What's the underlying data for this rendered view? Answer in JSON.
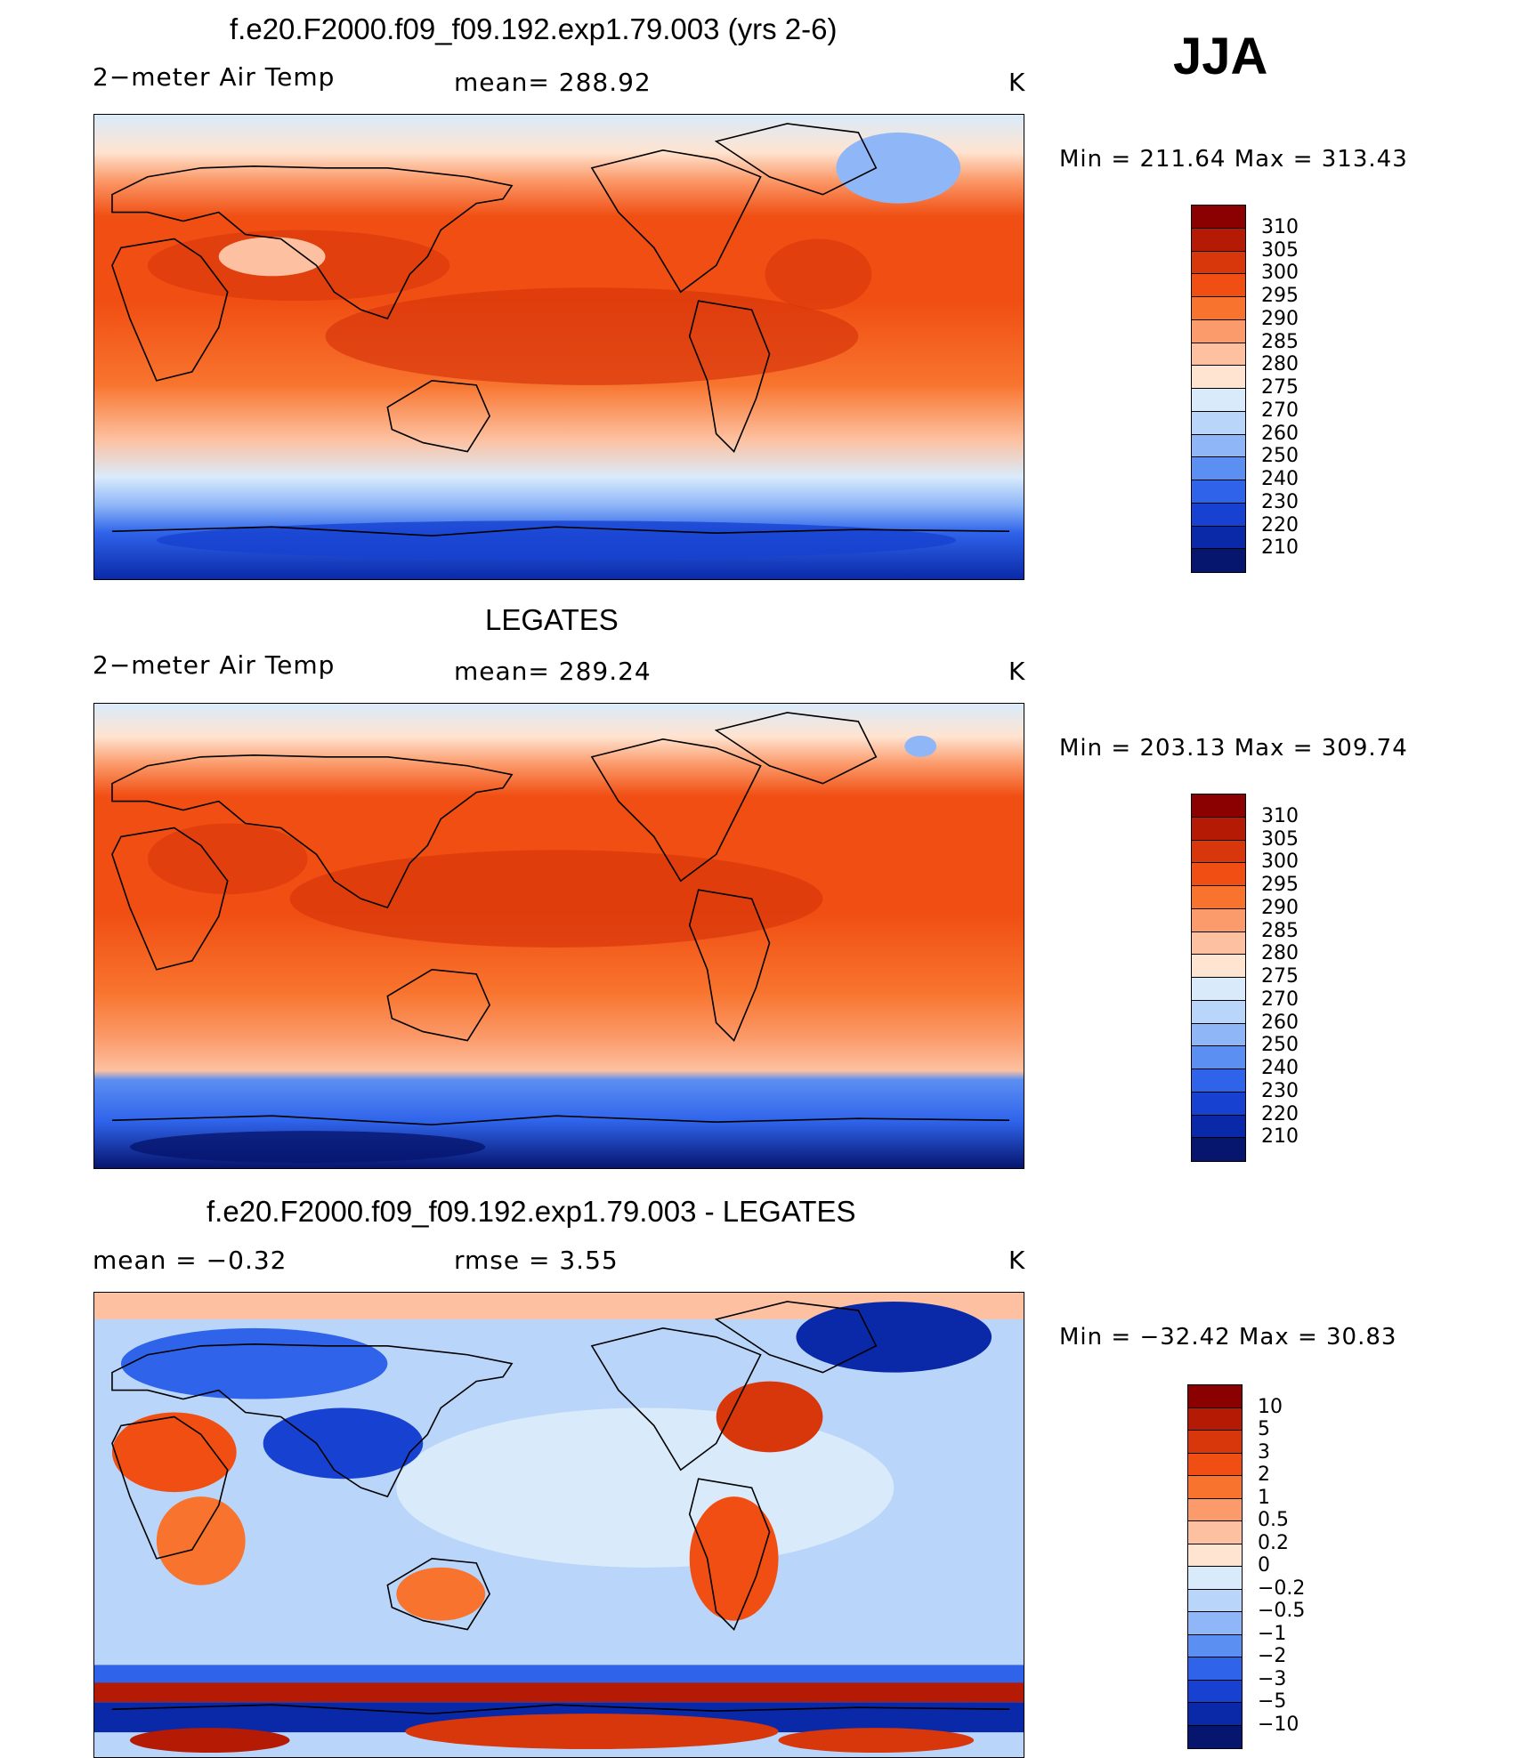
{
  "season": "JJA",
  "units": "K",
  "panels": [
    {
      "id": "model",
      "title": "f.e20.F2000.f09_f09.192.exp1.79.003 (yrs 2-6)",
      "variable": "2−meter Air Temp",
      "mean_text": "mean= 288.92",
      "minmax_text": "Min = 211.64 Max = 313.43",
      "colorbar": {
        "labels": [
          "310",
          "305",
          "300",
          "295",
          "290",
          "285",
          "280",
          "275",
          "270",
          "260",
          "250",
          "240",
          "230",
          "220",
          "210"
        ],
        "colors": [
          "#8b0000",
          "#b51a05",
          "#d8360b",
          "#f04e12",
          "#f8742e",
          "#fb9a6a",
          "#fdc1a1",
          "#fee4d1",
          "#d9ebfb",
          "#b9d6fa",
          "#8fb7f7",
          "#5b8ff2",
          "#2f63ea",
          "#1741d0",
          "#0a29a8",
          "#06156e"
        ]
      },
      "map_palette": "temp"
    },
    {
      "id": "obs",
      "title": "LEGATES",
      "variable": "2−meter Air Temp",
      "mean_text": "mean= 289.24",
      "minmax_text": "Min = 203.13 Max = 309.74",
      "colorbar": {
        "labels": [
          "310",
          "305",
          "300",
          "295",
          "290",
          "285",
          "280",
          "275",
          "270",
          "260",
          "250",
          "240",
          "230",
          "220",
          "210"
        ],
        "colors": [
          "#8b0000",
          "#b51a05",
          "#d8360b",
          "#f04e12",
          "#f8742e",
          "#fb9a6a",
          "#fdc1a1",
          "#fee4d1",
          "#d9ebfb",
          "#b9d6fa",
          "#8fb7f7",
          "#5b8ff2",
          "#2f63ea",
          "#1741d0",
          "#0a29a8",
          "#06156e"
        ]
      },
      "map_palette": "temp"
    },
    {
      "id": "diff",
      "title": "f.e20.F2000.f09_f09.192.exp1.79.003 - LEGATES",
      "mean_text": "mean =   −0.32",
      "rmse_text": "rmse =    3.55",
      "minmax_text": "Min = −32.42 Max =  30.83",
      "colorbar": {
        "labels": [
          "10",
          "5",
          "3",
          "2",
          "1",
          "0.5",
          "0.2",
          "0",
          "−0.2",
          "−0.5",
          "−1",
          "−2",
          "−3",
          "−5",
          "−10"
        ],
        "colors": [
          "#8b0000",
          "#b51a05",
          "#d8360b",
          "#f04e12",
          "#f8742e",
          "#fb9a6a",
          "#fdc1a1",
          "#fee4d1",
          "#d9ebfb",
          "#b9d6fa",
          "#8fb7f7",
          "#5b8ff2",
          "#2f63ea",
          "#1741d0",
          "#0a29a8",
          "#06156e"
        ]
      },
      "map_palette": "diff"
    }
  ]
}
